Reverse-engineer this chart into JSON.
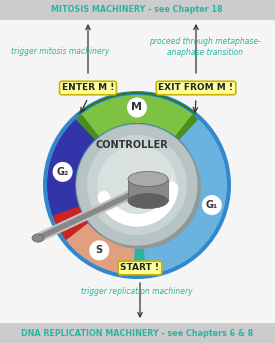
{
  "title_top": "MITOSIS MACHINERY - see Chapter 18",
  "title_bottom": "DNA REPLICATION MACHINERY - see Chapters 6 & 8",
  "title_color": "#2ab5a0",
  "title_bg": "#cccccc",
  "label_enter": "ENTER M !",
  "label_exit": "EXIT FROM M !",
  "label_start": "START !",
  "label_controller": "CONTROLLER",
  "label_M": "M",
  "label_G1": "G₁",
  "label_G2": "G₂",
  "label_S": "S",
  "text_trigger_mitosis": "trigger mitosis machinery",
  "text_proceed": "proceed through metaphase-\nanaphase transition",
  "text_trigger_replication": "trigger replication machinery",
  "bg_color": "#f5f5f5",
  "box_fill": "#ffff99",
  "box_edge": "#c8b400",
  "arrow_color": "#2ab5a0",
  "seg_M_color": "#7dc242",
  "seg_M_dark": "#4a8f1e",
  "seg_G1_color": "#6ab3e0",
  "seg_G1_dark": "#2277bb",
  "seg_G2_color": "#8080c0",
  "seg_G2_dark": "#3333aa",
  "seg_S_color": "#e0a080",
  "seg_red_color": "#cc2222",
  "seg_teal_color": "#2ab5a0",
  "inner_outer_color": "#a8c4dc",
  "inner_mid_color": "#c0d0d8",
  "inner_center_color": "#d4dcdc",
  "controller_dark": "#606060",
  "controller_mid": "#888888",
  "controller_light": "#aaaaaa",
  "rod_light": "#c0c0c0",
  "rod_dark": "#888888"
}
